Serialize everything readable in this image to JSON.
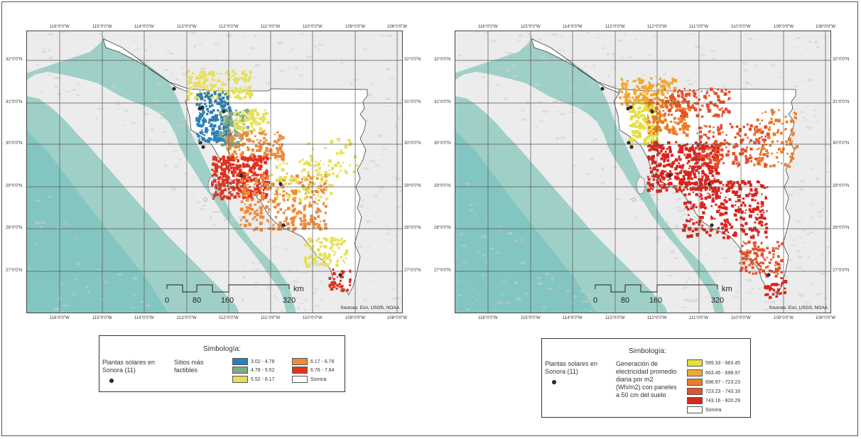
{
  "lon_labels": [
    "116°0'0\"W",
    "115°0'0\"W",
    "114°0'0\"W",
    "113°0'0\"W",
    "112°0'0\"W",
    "111°0'0\"W",
    "110°0'0\"W",
    "109°0'0\"W",
    "108°0'0\"W"
  ],
  "lat_labels": [
    "32°0'0\"N",
    "31°0'0\"N",
    "30°0'0\"N",
    "29°0'0\"N",
    "28°0'0\"N",
    "27°0'0\"N"
  ],
  "scalebar": {
    "labels": [
      "0",
      "80",
      "160",
      "320"
    ],
    "unit": "km"
  },
  "sources": "Sources: Esri, USGS, NOAA",
  "left": {
    "legend": {
      "title": "Simbología:",
      "points_label": "Plantas solares en Sonora (11)",
      "field_label": "Sitios más factibles",
      "classes": [
        {
          "label": "3.02 - 4.78",
          "color": "#2e7fb8"
        },
        {
          "label": "4.78 - 5.52",
          "color": "#7fac86"
        },
        {
          "label": "5.52 - 6.17",
          "color": "#e6e05a"
        },
        {
          "label": "6.17 - 6.76",
          "color": "#ee8a3a"
        },
        {
          "label": "6.76 - 7.64",
          "color": "#e2321f"
        }
      ],
      "sonora_label": "Sonora"
    }
  },
  "right": {
    "legend": {
      "title": "Simbología:",
      "points_label": "Plantas solares en Sonora (11)",
      "field_label": "Generación de electricidad promedio diaria por m2 (Wh/m2) con paneles a 50 cm del suelo",
      "classes": [
        {
          "label": "599.33 - 663.45",
          "color": "#e3df3f"
        },
        {
          "label": "663.45 - 698.97",
          "color": "#f0a830"
        },
        {
          "label": "698.97 - 723.23",
          "color": "#ec7c26"
        },
        {
          "label": "723.23 - 743.16",
          "color": "#e2512b"
        },
        {
          "label": "743.16 - 820.29",
          "color": "#d7261e"
        }
      ],
      "sonora_label": "Sonora"
    }
  },
  "colors": {
    "sea": "#9fd0c8",
    "sea_deep": "#77c1bd",
    "land": "#ececec",
    "terrain": "#cfcfcf"
  }
}
